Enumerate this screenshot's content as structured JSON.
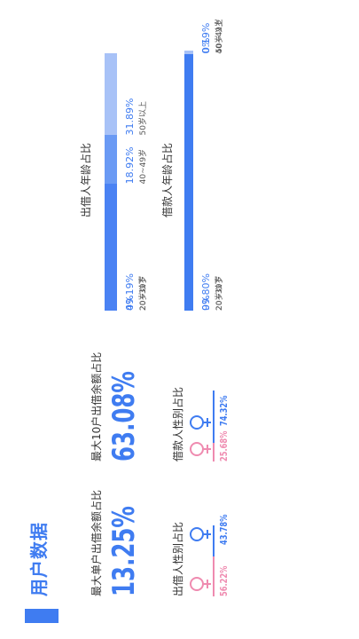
{
  "section": {
    "title": "用户数据"
  },
  "metrics": [
    {
      "label": "最大单户出借余额占比",
      "value": "13.25%"
    },
    {
      "label": "最大10户出借余额占比",
      "value": "63.08%"
    }
  ],
  "gender": [
    {
      "title": "出借人性别占比",
      "female_pct": "56.22%",
      "male_pct": "43.78%",
      "female_share": 56.22,
      "male_share": 43.78
    },
    {
      "title": "借款人性别占比",
      "female_pct": "25.68%",
      "male_pct": "74.32%",
      "female_share": 25.68,
      "male_share": 74.32
    }
  ],
  "chart_data": [
    {
      "type": "bar",
      "title": "出借人年龄占比",
      "categories": [
        "20岁以下",
        "20~39岁",
        "40~49岁",
        "50岁以上"
      ],
      "values": [
        0,
        49.19,
        18.92,
        31.89
      ],
      "labels": [
        "0%",
        "49.19%",
        "18.92%",
        "31.89%"
      ],
      "colors": [
        "#3f7cf1",
        "#4a82f3",
        "#6a9af4",
        "#a8c2f7"
      ]
    },
    {
      "type": "bar",
      "title": "借款人年龄占比",
      "categories": [
        "20岁以下",
        "20~39岁",
        "40~49岁",
        "50岁以上"
      ],
      "values": [
        0,
        99.8,
        0.19,
        0
      ],
      "labels": [
        "0%",
        "99.80%",
        "0.19%",
        "0%"
      ],
      "colors": [
        "#3f7cf1",
        "#3f7cf1",
        "#a8c2f7",
        "#a8c2f7"
      ]
    }
  ],
  "colors": {
    "accent": "#3f7cf1",
    "female": "#ef8bb0",
    "male": "#3f7cf1"
  }
}
